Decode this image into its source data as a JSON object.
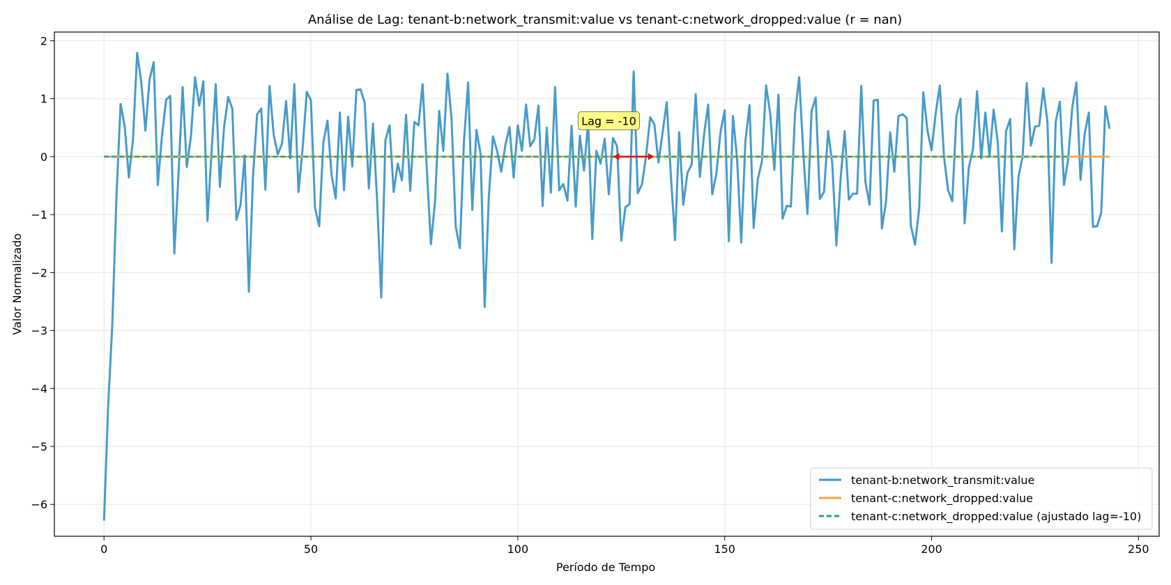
{
  "chart_data": {
    "type": "line",
    "title": "Análise de Lag: tenant-b:network_transmit:value vs tenant-c:network_dropped:value (r = nan)",
    "xlabel": "Período de Tempo",
    "ylabel": "Valor Normalizado",
    "xlim": [
      -12,
      255
    ],
    "ylim": [
      -6.55,
      2.15
    ],
    "xticks": [
      0,
      50,
      100,
      150,
      200,
      250
    ],
    "xtick_labels": [
      "0",
      "50",
      "100",
      "150",
      "200",
      "250"
    ],
    "yticks": [
      -6,
      -5,
      -4,
      -3,
      -2,
      -1,
      0,
      1,
      2
    ],
    "ytick_labels": [
      "−6",
      "−5",
      "−4",
      "−3",
      "−2",
      "−1",
      "0",
      "1",
      "2"
    ],
    "grid": true,
    "legend_position": "lower-right",
    "annotation": {
      "text": "Lag = -10",
      "arrow_from_x": 123,
      "arrow_to_x": 133,
      "arrow_y": 0,
      "label_x": 122,
      "label_y": 0.62
    },
    "series": [
      {
        "name": "tenant-b:network_transmit:value",
        "color": "#3d96c6",
        "style": "solid",
        "x_start": 0,
        "values": [
          -6.28,
          -4.3,
          -2.9,
          -0.7,
          0.91,
          0.52,
          -0.36,
          0.3,
          1.79,
          1.29,
          0.45,
          1.33,
          1.63,
          -0.49,
          0.35,
          0.98,
          1.05,
          -1.67,
          -0.3,
          1.2,
          -0.18,
          0.35,
          1.37,
          0.88,
          1.3,
          -1.11,
          0.1,
          1.25,
          -0.52,
          0.5,
          1.03,
          0.83,
          -1.09,
          -0.83,
          0.02,
          -2.33,
          -0.35,
          0.73,
          0.83,
          -0.57,
          1.22,
          0.38,
          0.04,
          0.22,
          0.96,
          -0.03,
          1.25,
          -0.61,
          0.15,
          1.12,
          0.97,
          -0.89,
          -1.2,
          0.24,
          0.62,
          -0.32,
          -0.72,
          0.76,
          -0.58,
          0.69,
          -0.17,
          1.15,
          1.16,
          0.93,
          -0.55,
          0.57,
          -0.76,
          -2.43,
          0.28,
          0.54,
          -0.61,
          -0.12,
          -0.41,
          0.72,
          -0.59,
          0.6,
          0.54,
          1.25,
          -0.2,
          -1.51,
          -0.77,
          0.79,
          0.1,
          1.43,
          0.64,
          -1.21,
          -1.58,
          0.28,
          1.28,
          -0.92,
          0.46,
          0.05,
          -2.59,
          -0.69,
          0.35,
          0.1,
          -0.26,
          0.2,
          0.51,
          -0.36,
          0.54,
          0.1,
          0.9,
          0.18,
          0.3,
          0.88,
          -0.85,
          0.5,
          -0.62,
          1.2,
          -0.58,
          -0.47,
          -0.76,
          0.53,
          -0.86,
          0.36,
          -0.24,
          0.6,
          -1.42,
          0.1,
          -0.12,
          0.31,
          -0.65,
          0.32,
          0.18,
          -1.45,
          -0.87,
          -0.82,
          1.47,
          -0.63,
          -0.48,
          0.01,
          0.68,
          0.56,
          -0.1,
          0.42,
          0.94,
          -0.33,
          -1.44,
          0.42,
          -0.83,
          -0.28,
          -0.14,
          1.08,
          -0.35,
          0.37,
          0.9,
          -0.65,
          -0.29,
          0.43,
          0.8,
          -1.46,
          0.7,
          -0.04,
          -1.48,
          0.26,
          0.89,
          -1.23,
          -0.39,
          -0.08,
          1.23,
          0.74,
          -0.23,
          1.07,
          -1.07,
          -0.85,
          -0.86,
          0.74,
          1.37,
          0.06,
          -0.99,
          0.79,
          1.02,
          -0.73,
          -0.61,
          0.44,
          -0.12,
          -1.53,
          -0.4,
          0.44,
          -0.74,
          -0.64,
          -0.64,
          1.22,
          -0.43,
          -0.83,
          0.97,
          0.98,
          -1.24,
          -0.77,
          0.42,
          -0.26,
          0.7,
          0.73,
          0.67,
          -1.19,
          -1.52,
          -0.9,
          1.11,
          0.45,
          0.11,
          0.75,
          1.23,
          0.0,
          -0.58,
          -0.77,
          0.7,
          1.0,
          -1.15,
          -0.19,
          0.13,
          1.13,
          -0.03,
          0.76,
          0.0,
          0.81,
          0.25,
          -1.29,
          0.44,
          0.65,
          -1.6,
          -0.35,
          0.0,
          1.27,
          0.19,
          0.52,
          0.53,
          1.18,
          0.6,
          -1.83,
          0.6,
          0.95,
          -0.49,
          -0.05,
          0.85,
          1.28,
          -0.4,
          0.4,
          0.76,
          -1.21,
          -1.2,
          -0.97,
          0.87,
          0.48
        ]
      },
      {
        "name": "tenant-c:network_dropped:value",
        "color": "#f0a443",
        "style": "solid",
        "x": [
          0,
          243
        ],
        "values": [
          0,
          0
        ]
      },
      {
        "name": "tenant-c:network_dropped:value (ajustado lag=-10)",
        "color": "#1fa67a",
        "style": "dashed",
        "x": [
          0,
          233
        ],
        "values": [
          0,
          0
        ]
      }
    ]
  }
}
